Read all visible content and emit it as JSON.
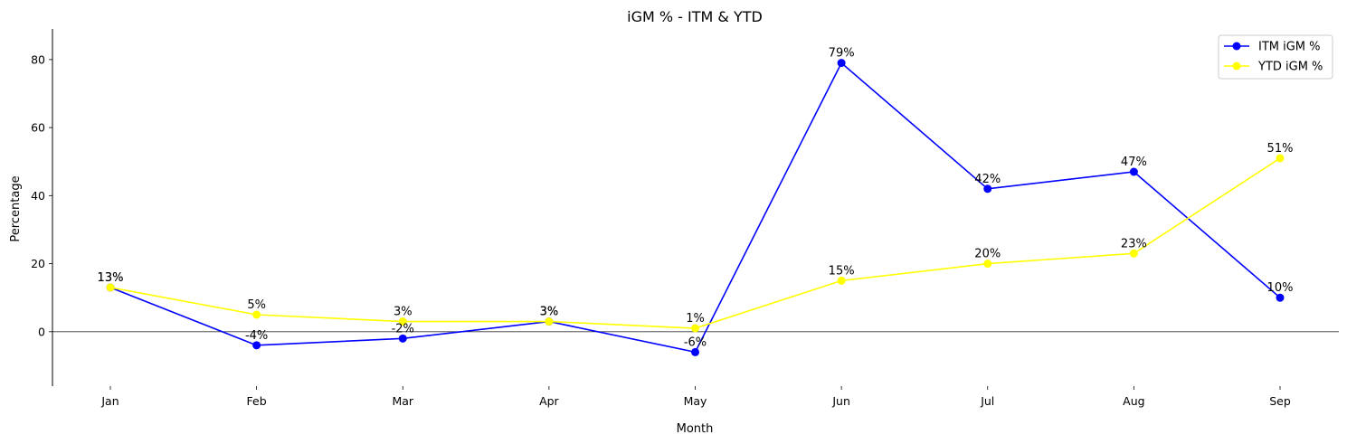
{
  "chart_data": {
    "type": "line",
    "title": "iGM % - ITM & YTD",
    "xlabel": "Month",
    "ylabel": "Percentage",
    "categories": [
      "Jan",
      "Feb",
      "Mar",
      "Apr",
      "May",
      "Jun",
      "Jul",
      "Aug",
      "Sep"
    ],
    "ylim": [
      -16,
      89
    ],
    "yticks": [
      0,
      20,
      40,
      60,
      80
    ],
    "grid": false,
    "zero_line": true,
    "legend_position": "top-right",
    "series": [
      {
        "name": "ITM iGM %",
        "color": "#0000ff",
        "values": [
          13,
          -4,
          -2,
          3,
          -6,
          79,
          42,
          47,
          10
        ],
        "labels": [
          "13%",
          "-4%",
          "-2%",
          "3%",
          "-6%",
          "79%",
          "42%",
          "47%",
          "10%"
        ]
      },
      {
        "name": "YTD iGM %",
        "color": "#ffff00",
        "values": [
          13,
          5,
          3,
          3,
          1,
          15,
          20,
          23,
          51
        ],
        "labels": [
          "13%",
          "5%",
          "3%",
          "3%",
          "1%",
          "15%",
          "20%",
          "23%",
          "51%"
        ]
      }
    ]
  }
}
